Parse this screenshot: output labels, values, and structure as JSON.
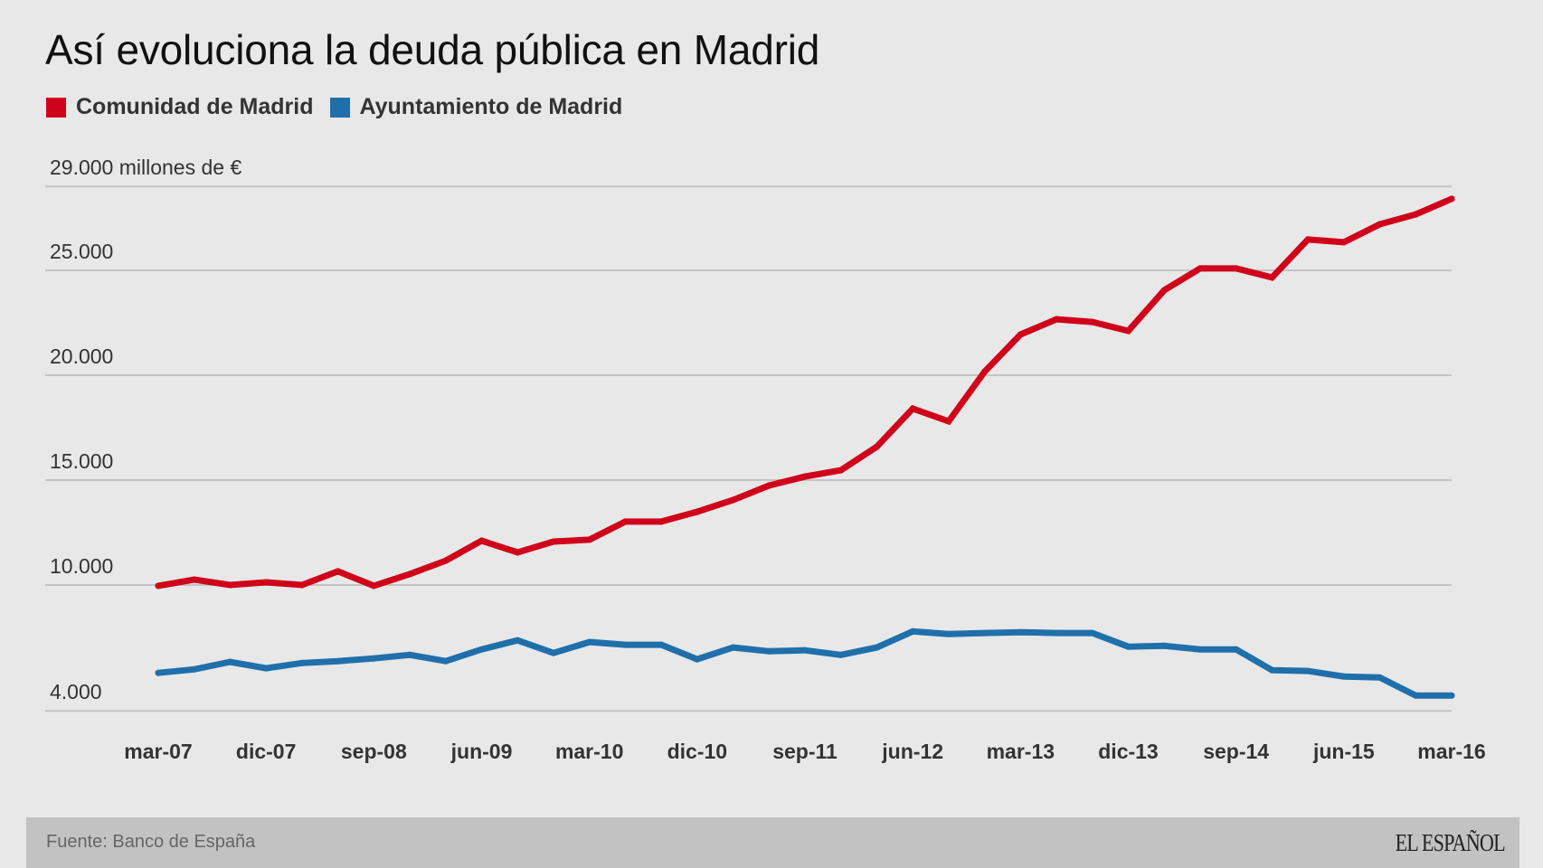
{
  "chart_data": {
    "type": "line",
    "title": "Así evoluciona la deuda pública en Madrid",
    "ylabel": "millones de €",
    "ylabel_prefix_tick": "29.000 millones de €",
    "xlabel": "",
    "ylim": [
      4000,
      29000
    ],
    "yticks": [
      {
        "value": 29000,
        "label": "29.000 millones de €"
      },
      {
        "value": 25000,
        "label": "25.000"
      },
      {
        "value": 20000,
        "label": "20.000"
      },
      {
        "value": 15000,
        "label": "15.000"
      },
      {
        "value": 10000,
        "label": "10.000"
      },
      {
        "value": 4000,
        "label": "4.000"
      }
    ],
    "grid": true,
    "legend_position": "top-left",
    "x": [
      "mar-07",
      "jun-07",
      "sep-07",
      "dic-07",
      "mar-08",
      "jun-08",
      "sep-08",
      "dic-08",
      "mar-09",
      "jun-09",
      "sep-09",
      "dic-09",
      "mar-10",
      "jun-10",
      "sep-10",
      "dic-10",
      "mar-11",
      "jun-11",
      "sep-11",
      "dic-11",
      "mar-12",
      "jun-12",
      "sep-12",
      "dic-12",
      "mar-13",
      "jun-13",
      "sep-13",
      "dic-13",
      "mar-14",
      "jun-14",
      "sep-14",
      "dic-14",
      "mar-15",
      "jun-15",
      "sep-15",
      "dic-15",
      "mar-16"
    ],
    "xtick_labels": [
      "mar-07",
      "dic-07",
      "sep-08",
      "jun-09",
      "mar-10",
      "dic-10",
      "sep-11",
      "jun-12",
      "mar-13",
      "dic-13",
      "sep-14",
      "jun-15",
      "mar-16"
    ],
    "series": [
      {
        "name": "Comunidad de Madrid",
        "color": "#d0021b",
        "values": [
          9960,
          10260,
          10000,
          10130,
          10000,
          10650,
          9960,
          10520,
          11160,
          12110,
          11550,
          12070,
          12160,
          13020,
          13020,
          13490,
          14050,
          14740,
          15170,
          15470,
          16590,
          18410,
          17800,
          20170,
          21940,
          22670,
          22540,
          22110,
          24050,
          25090,
          25090,
          24660,
          26470,
          26340,
          27200,
          27670,
          28410
        ]
      },
      {
        "name": "Ayuntamiento de Madrid",
        "color": "#1f6fab",
        "values": [
          5810,
          5980,
          6330,
          6030,
          6280,
          6370,
          6500,
          6670,
          6370,
          6930,
          7360,
          6760,
          7280,
          7150,
          7150,
          6460,
          7020,
          6840,
          6890,
          6670,
          7020,
          7790,
          7660,
          7710,
          7750,
          7710,
          7710,
          7060,
          7100,
          6930,
          6930,
          5940,
          5900,
          5640,
          5590,
          4730,
          4730
        ]
      }
    ]
  },
  "footer": {
    "source": "Fuente: Banco de España",
    "logo": "EL ESPAÑOL"
  }
}
